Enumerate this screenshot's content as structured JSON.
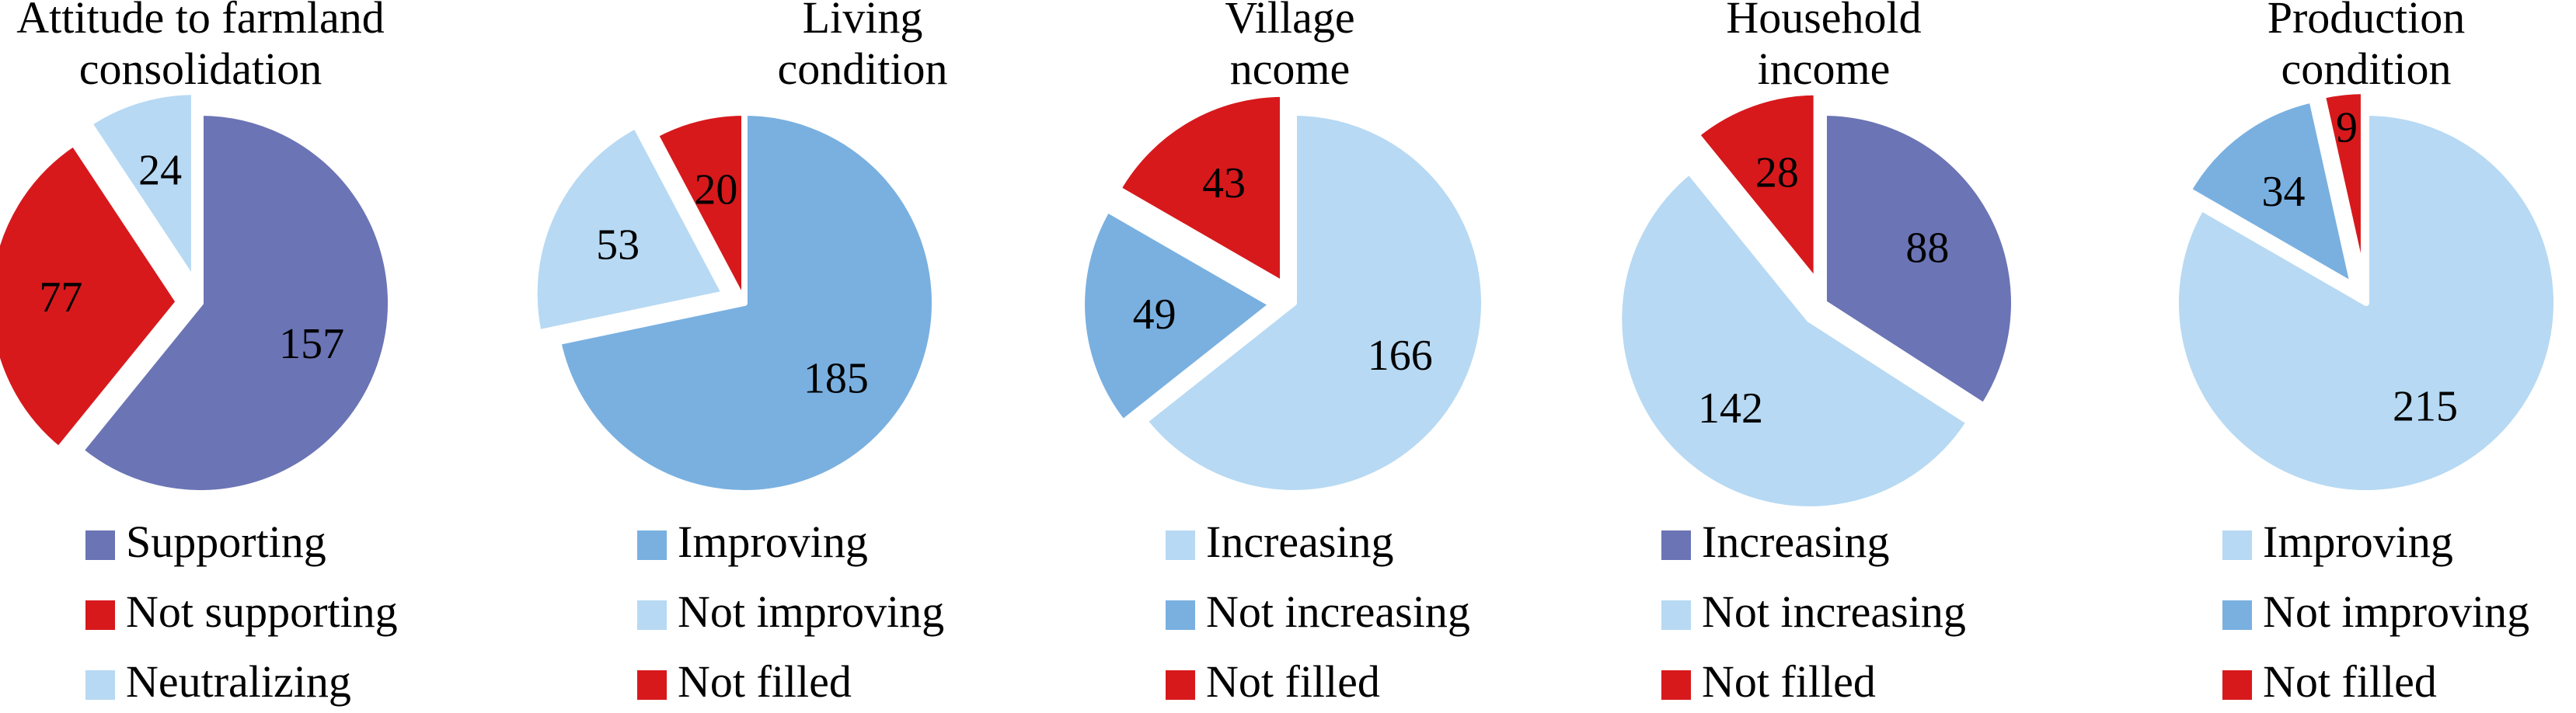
{
  "chart_data": [
    {
      "type": "pie",
      "title": "Attitude to farmland consolidation",
      "title_lines": [
        "Attitude to farmland",
        "consolidation"
      ],
      "slices": [
        {
          "label": "Supporting",
          "value": 157,
          "color": "#6b74b4"
        },
        {
          "label": "Not supporting",
          "value": 77,
          "color": "#d7191c"
        },
        {
          "label": "Neutralizing",
          "value": 24,
          "color": "#b7d9f3"
        }
      ],
      "exploded": [
        "Not supporting",
        "Neutralizing"
      ],
      "legend_position": "bottom"
    },
    {
      "type": "pie",
      "title": "Living condition",
      "title_lines": [
        "Living",
        "condition"
      ],
      "slices": [
        {
          "label": "Improving",
          "value": 185,
          "color": "#79b0e0"
        },
        {
          "label": "Not improving",
          "value": 53,
          "color": "#b7d9f3"
        },
        {
          "label": "Not filled",
          "value": 20,
          "color": "#d7191c"
        }
      ],
      "exploded": [
        "Not improving"
      ],
      "legend_position": "bottom"
    },
    {
      "type": "pie",
      "title": "Village ncome",
      "title_lines": [
        "Village",
        "ncome"
      ],
      "slices": [
        {
          "label": "Increasing",
          "value": 166,
          "color": "#b7d9f3"
        },
        {
          "label": "Not increasing",
          "value": 49,
          "color": "#79b0e0"
        },
        {
          "label": "Not filled",
          "value": 43,
          "color": "#d7191c"
        }
      ],
      "exploded": [
        "Not increasing",
        "Not filled"
      ],
      "legend_position": "bottom"
    },
    {
      "type": "pie",
      "title": "Household income",
      "title_lines": [
        "Household",
        "income"
      ],
      "slices": [
        {
          "label": "Increasing",
          "value": 88,
          "color": "#6b74b4"
        },
        {
          "label": "Not increasing",
          "value": 142,
          "color": "#b7d9f3"
        },
        {
          "label": "Not filled",
          "value": 28,
          "color": "#d7191c"
        }
      ],
      "exploded": [
        "Not increasing",
        "Not filled"
      ],
      "legend_position": "bottom"
    },
    {
      "type": "pie",
      "title": "Production condition",
      "title_lines": [
        "Production",
        "condition"
      ],
      "slices": [
        {
          "label": "Improving",
          "value": 215,
          "color": "#b7d9f3"
        },
        {
          "label": "Not improving",
          "value": 34,
          "color": "#79b0e0"
        },
        {
          "label": "Not filled",
          "value": 9,
          "color": "#d7191c"
        }
      ],
      "exploded": [
        "Not improving",
        "Not filled"
      ],
      "legend_position": "bottom"
    }
  ]
}
